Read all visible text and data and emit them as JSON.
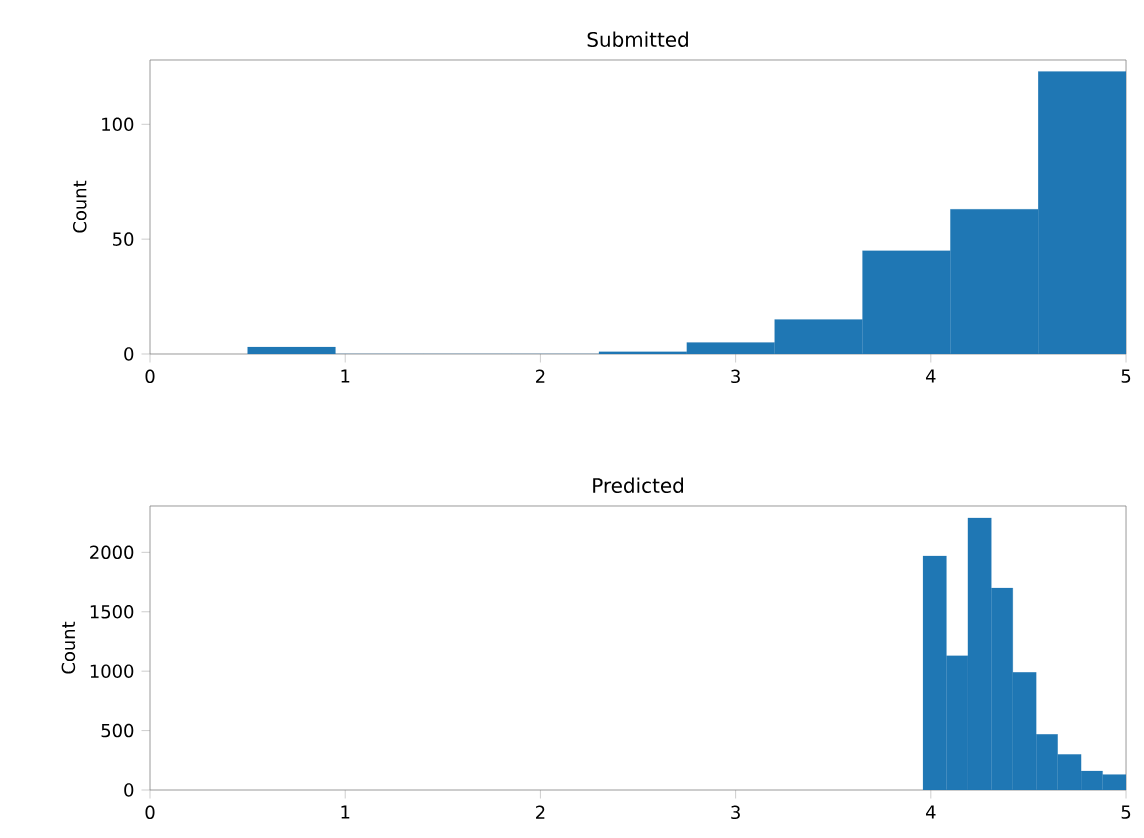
{
  "chart_data": [
    {
      "type": "histogram",
      "title": "Submitted",
      "ylabel": "Count",
      "bins": [
        0.5,
        0.95,
        1.4,
        1.85,
        2.3,
        2.75,
        3.2,
        3.65,
        4.1,
        4.55,
        5.0
      ],
      "values": [
        3,
        0,
        0,
        0,
        1,
        5,
        15,
        45,
        63,
        123
      ],
      "color": "#1f77b4",
      "xlim": [
        0,
        5
      ],
      "ylim": [
        0,
        128
      ],
      "xticks": [
        0,
        1,
        2,
        3,
        4,
        5
      ],
      "yticks": [
        0,
        50,
        100
      ]
    },
    {
      "type": "histogram",
      "title": "Predicted",
      "ylabel": "Count",
      "bins": [
        3.96,
        4.08,
        4.19,
        4.31,
        4.42,
        4.54,
        4.65,
        4.77,
        4.88,
        5.0
      ],
      "values": [
        1970,
        1130,
        2290,
        1700,
        990,
        470,
        300,
        160,
        130
      ],
      "color": "#1f77b4",
      "xlim": [
        0,
        5
      ],
      "ylim": [
        0,
        2390
      ],
      "xticks": [
        0,
        1,
        2,
        3,
        4,
        5
      ],
      "yticks": [
        0,
        500,
        1000,
        1500,
        2000
      ]
    }
  ]
}
